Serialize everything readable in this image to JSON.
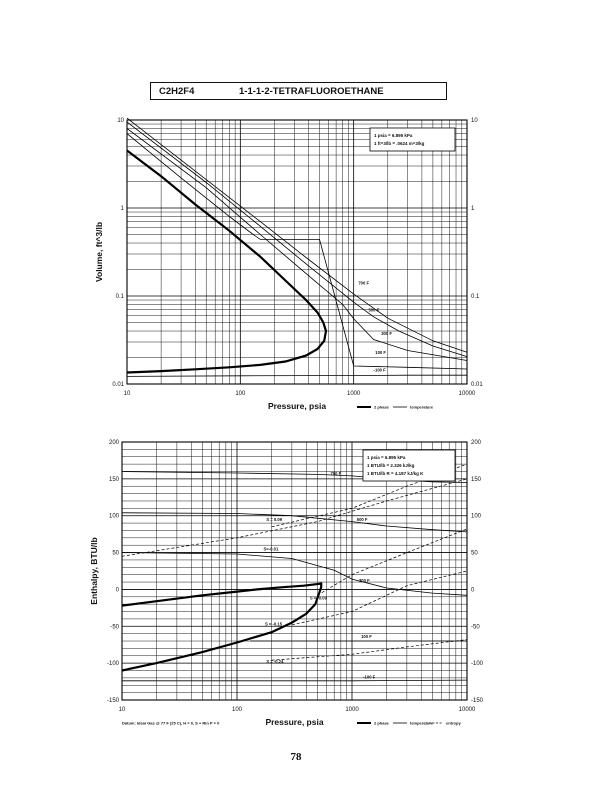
{
  "header": {
    "formula": "C2H2F4",
    "name": "1-1-1-2-TETRAFLUOROETHANE"
  },
  "page_number": "78",
  "chart_data": [
    {
      "type": "line",
      "title": "",
      "xlabel": "Pressure,  psia",
      "ylabel": "Volume, ft^3/lb",
      "xscale": "log",
      "yscale": "log",
      "xlim": [
        10,
        10000
      ],
      "ylim": [
        0.01,
        10
      ],
      "grid": true,
      "x_ticks": [
        "10",
        "100",
        "1000",
        "10000"
      ],
      "y_ticks": [
        "10",
        "1",
        "0.1",
        "0.01"
      ],
      "y_ticks_right": [
        "10",
        "1",
        "0.1",
        "0.01"
      ],
      "info_box": [
        "1 psia = 6.895 kPa",
        "1 ft^3/lb = .0624 m^3/kg"
      ],
      "legend": {
        "position": "bottom-right",
        "entries": [
          "2 phase",
          "temperature"
        ]
      },
      "annotations": [
        "700 F",
        "500 F",
        "300 F",
        "100 F",
        "-100 F"
      ],
      "series": [
        {
          "name": "2 phase",
          "style": "thick",
          "x": [
            10,
            20,
            40,
            80,
            150,
            250,
            380,
            480,
            540,
            570,
            550,
            480,
            380,
            250,
            150,
            80,
            40,
            20,
            10
          ],
          "y": [
            4.5,
            2.3,
            1.1,
            0.55,
            0.28,
            0.15,
            0.09,
            0.065,
            0.05,
            0.04,
            0.031,
            0.025,
            0.021,
            0.018,
            0.0165,
            0.0155,
            0.0147,
            0.014,
            0.0135
          ]
        },
        {
          "name": "-100 F",
          "x": [
            10,
            100,
            1000,
            3000,
            10000
          ],
          "y": [
            0.0122,
            0.0124,
            0.0125,
            0.0126,
            0.0126
          ]
        },
        {
          "name": "100 F",
          "x": [
            10,
            30,
            80,
            130,
            150,
            155,
            200,
            500,
            1000,
            3000,
            10000
          ],
          "y": [
            7,
            2.2,
            0.8,
            0.5,
            0.44,
            0.44,
            0.44,
            0.44,
            0.016,
            0.0155,
            0.0148
          ]
        },
        {
          "name": "300 F",
          "x": [
            10,
            50,
            150,
            400,
            800,
            1000,
            1500,
            3000,
            10000
          ],
          "y": [
            8,
            1.7,
            0.5,
            0.17,
            0.08,
            0.055,
            0.032,
            0.024,
            0.0185
          ]
        },
        {
          "name": "500 F",
          "x": [
            10,
            50,
            150,
            400,
            1000,
            1500,
            2500,
            5000,
            10000
          ],
          "y": [
            9.5,
            1.95,
            0.62,
            0.22,
            0.085,
            0.058,
            0.04,
            0.027,
            0.0205
          ]
        },
        {
          "name": "700 F",
          "x": [
            10,
            50,
            150,
            400,
            1000,
            2000,
            5000,
            10000
          ],
          "y": [
            10.5,
            2.1,
            0.7,
            0.26,
            0.105,
            0.056,
            0.031,
            0.023
          ]
        }
      ]
    },
    {
      "type": "line",
      "title": "",
      "xlabel": "Pressure,  psia",
      "ylabel": "Enthalpy, BTU/lb",
      "xscale": "log",
      "yscale": "linear",
      "xlim": [
        10,
        10000
      ],
      "ylim": [
        -150,
        200
      ],
      "grid": true,
      "x_ticks": [
        "10",
        "100",
        "1000",
        "10000"
      ],
      "y_ticks": [
        "200",
        "150",
        "100",
        "50",
        "0",
        "-50",
        "-100",
        "-150"
      ],
      "y_ticks_right": [
        "200",
        "150",
        "100",
        "50",
        "0",
        "-50",
        "-100",
        "-150"
      ],
      "info_box": [
        "1 psia = 6.895 kPa",
        "1 BTU/lb = 2.326 kJ/kg",
        "1 BTU/lb R = 4.187 kJ/kg K"
      ],
      "legend": {
        "position": "bottom-right",
        "entries": [
          "2 phase",
          "temperature",
          "entropy"
        ]
      },
      "footnote": "Datum: Ideal Gas @ 77 F (25 C), H = 0, S + Rln P = 0",
      "annotations": [
        "700 F",
        "500 F",
        "300 F",
        "100 F",
        "-100 F",
        "S = 0.09",
        "S=-0.01",
        "S = -0.09",
        "S = -0.15",
        "S = -0.24"
      ],
      "series": [
        {
          "name": "2 phase",
          "style": "thick",
          "x": [
            10,
            20,
            50,
            100,
            200,
            300,
            400,
            480,
            540,
            540,
            480,
            380,
            250,
            150,
            100,
            50,
            20,
            10
          ],
          "y": [
            -110,
            -100,
            -85,
            -72,
            -58,
            -45,
            -33,
            -20,
            3,
            8,
            7,
            5,
            3,
            0,
            -3,
            -8,
            -16,
            -22
          ]
        },
        {
          "name": "700 F",
          "x": [
            10,
            100,
            500,
            1000,
            2000,
            5000,
            10000
          ],
          "y": [
            160,
            158,
            156,
            154,
            150,
            146,
            145
          ]
        },
        {
          "name": "500 F",
          "x": [
            10,
            100,
            300,
            1000,
            2000,
            5000,
            10000
          ],
          "y": [
            104,
            103,
            100,
            92,
            86,
            81,
            78
          ]
        },
        {
          "name": "300 F",
          "x": [
            10,
            100,
            300,
            700,
            1000,
            2000,
            5000,
            10000
          ],
          "y": [
            50,
            48,
            42,
            26,
            14,
            2,
            -5,
            -8
          ]
        },
        {
          "name": "100 F",
          "x": [
            130,
            200,
            500,
            1000,
            10000
          ],
          "y": [
            -70,
            -70,
            -70,
            -70,
            -70
          ]
        },
        {
          "name": "-100 F",
          "x": [
            10,
            100,
            1000,
            10000
          ],
          "y": [
            -124,
            -124,
            -124,
            -123
          ]
        },
        {
          "name": "S = 0.09",
          "style": "dashed",
          "x": [
            200,
            1000,
            3000,
            10000
          ],
          "y": [
            85,
            110,
            140,
            170
          ]
        },
        {
          "name": "S=-0.01",
          "style": "dashed",
          "x": [
            10,
            100,
            500,
            2000,
            10000
          ],
          "y": [
            45,
            70,
            92,
            120,
            150
          ]
        },
        {
          "name": "S = -0.09",
          "style": "dashed",
          "x": [
            500,
            1000,
            3000,
            10000
          ],
          "y": [
            -8,
            20,
            50,
            82
          ]
        },
        {
          "name": "S = -0.15",
          "style": "dashed",
          "x": [
            300,
            1000,
            3000,
            10000
          ],
          "y": [
            -48,
            -30,
            5,
            25
          ]
        },
        {
          "name": "S = -0.24",
          "style": "dashed",
          "x": [
            200,
            1000,
            3000,
            10000
          ],
          "y": [
            -96,
            -88,
            -78,
            -68
          ]
        }
      ]
    }
  ]
}
